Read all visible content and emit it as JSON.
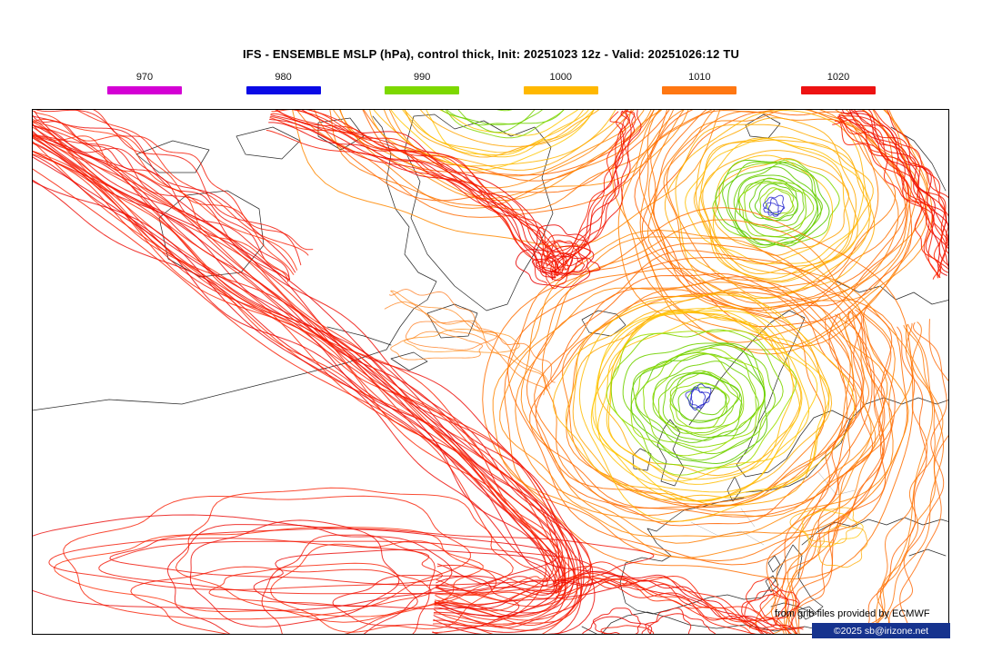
{
  "title": "IFS - ENSEMBLE MSLP (hPa), control thick, Init: 20251023 12z - Valid: 20251026:12 TU",
  "legend": {
    "items": [
      {
        "label": "970",
        "color": "#d400d4"
      },
      {
        "label": "980",
        "color": "#0a0ae6"
      },
      {
        "label": "990",
        "color": "#7dd800"
      },
      {
        "label": "1000",
        "color": "#ffb800"
      },
      {
        "label": "1010",
        "color": "#ff7712"
      },
      {
        "label": "1020",
        "color": "#ed1212"
      }
    ]
  },
  "map": {
    "colors": {
      "green1": "#55c800",
      "green2": "#a2e000",
      "yellow1": "#ffc800",
      "yellow2": "#ffa000",
      "orange1": "#ff8a00",
      "orange2": "#ff5f00",
      "red1": "#e80000",
      "red2": "#ff2a00",
      "blue": "#2b2bd0",
      "coast": "#222222",
      "border": "#999999"
    }
  },
  "footer": {
    "credit": "from grib files provided by ECMWF",
    "copyright": "©2025 sb@irizone.net",
    "copyright_bg": "#16338e"
  }
}
